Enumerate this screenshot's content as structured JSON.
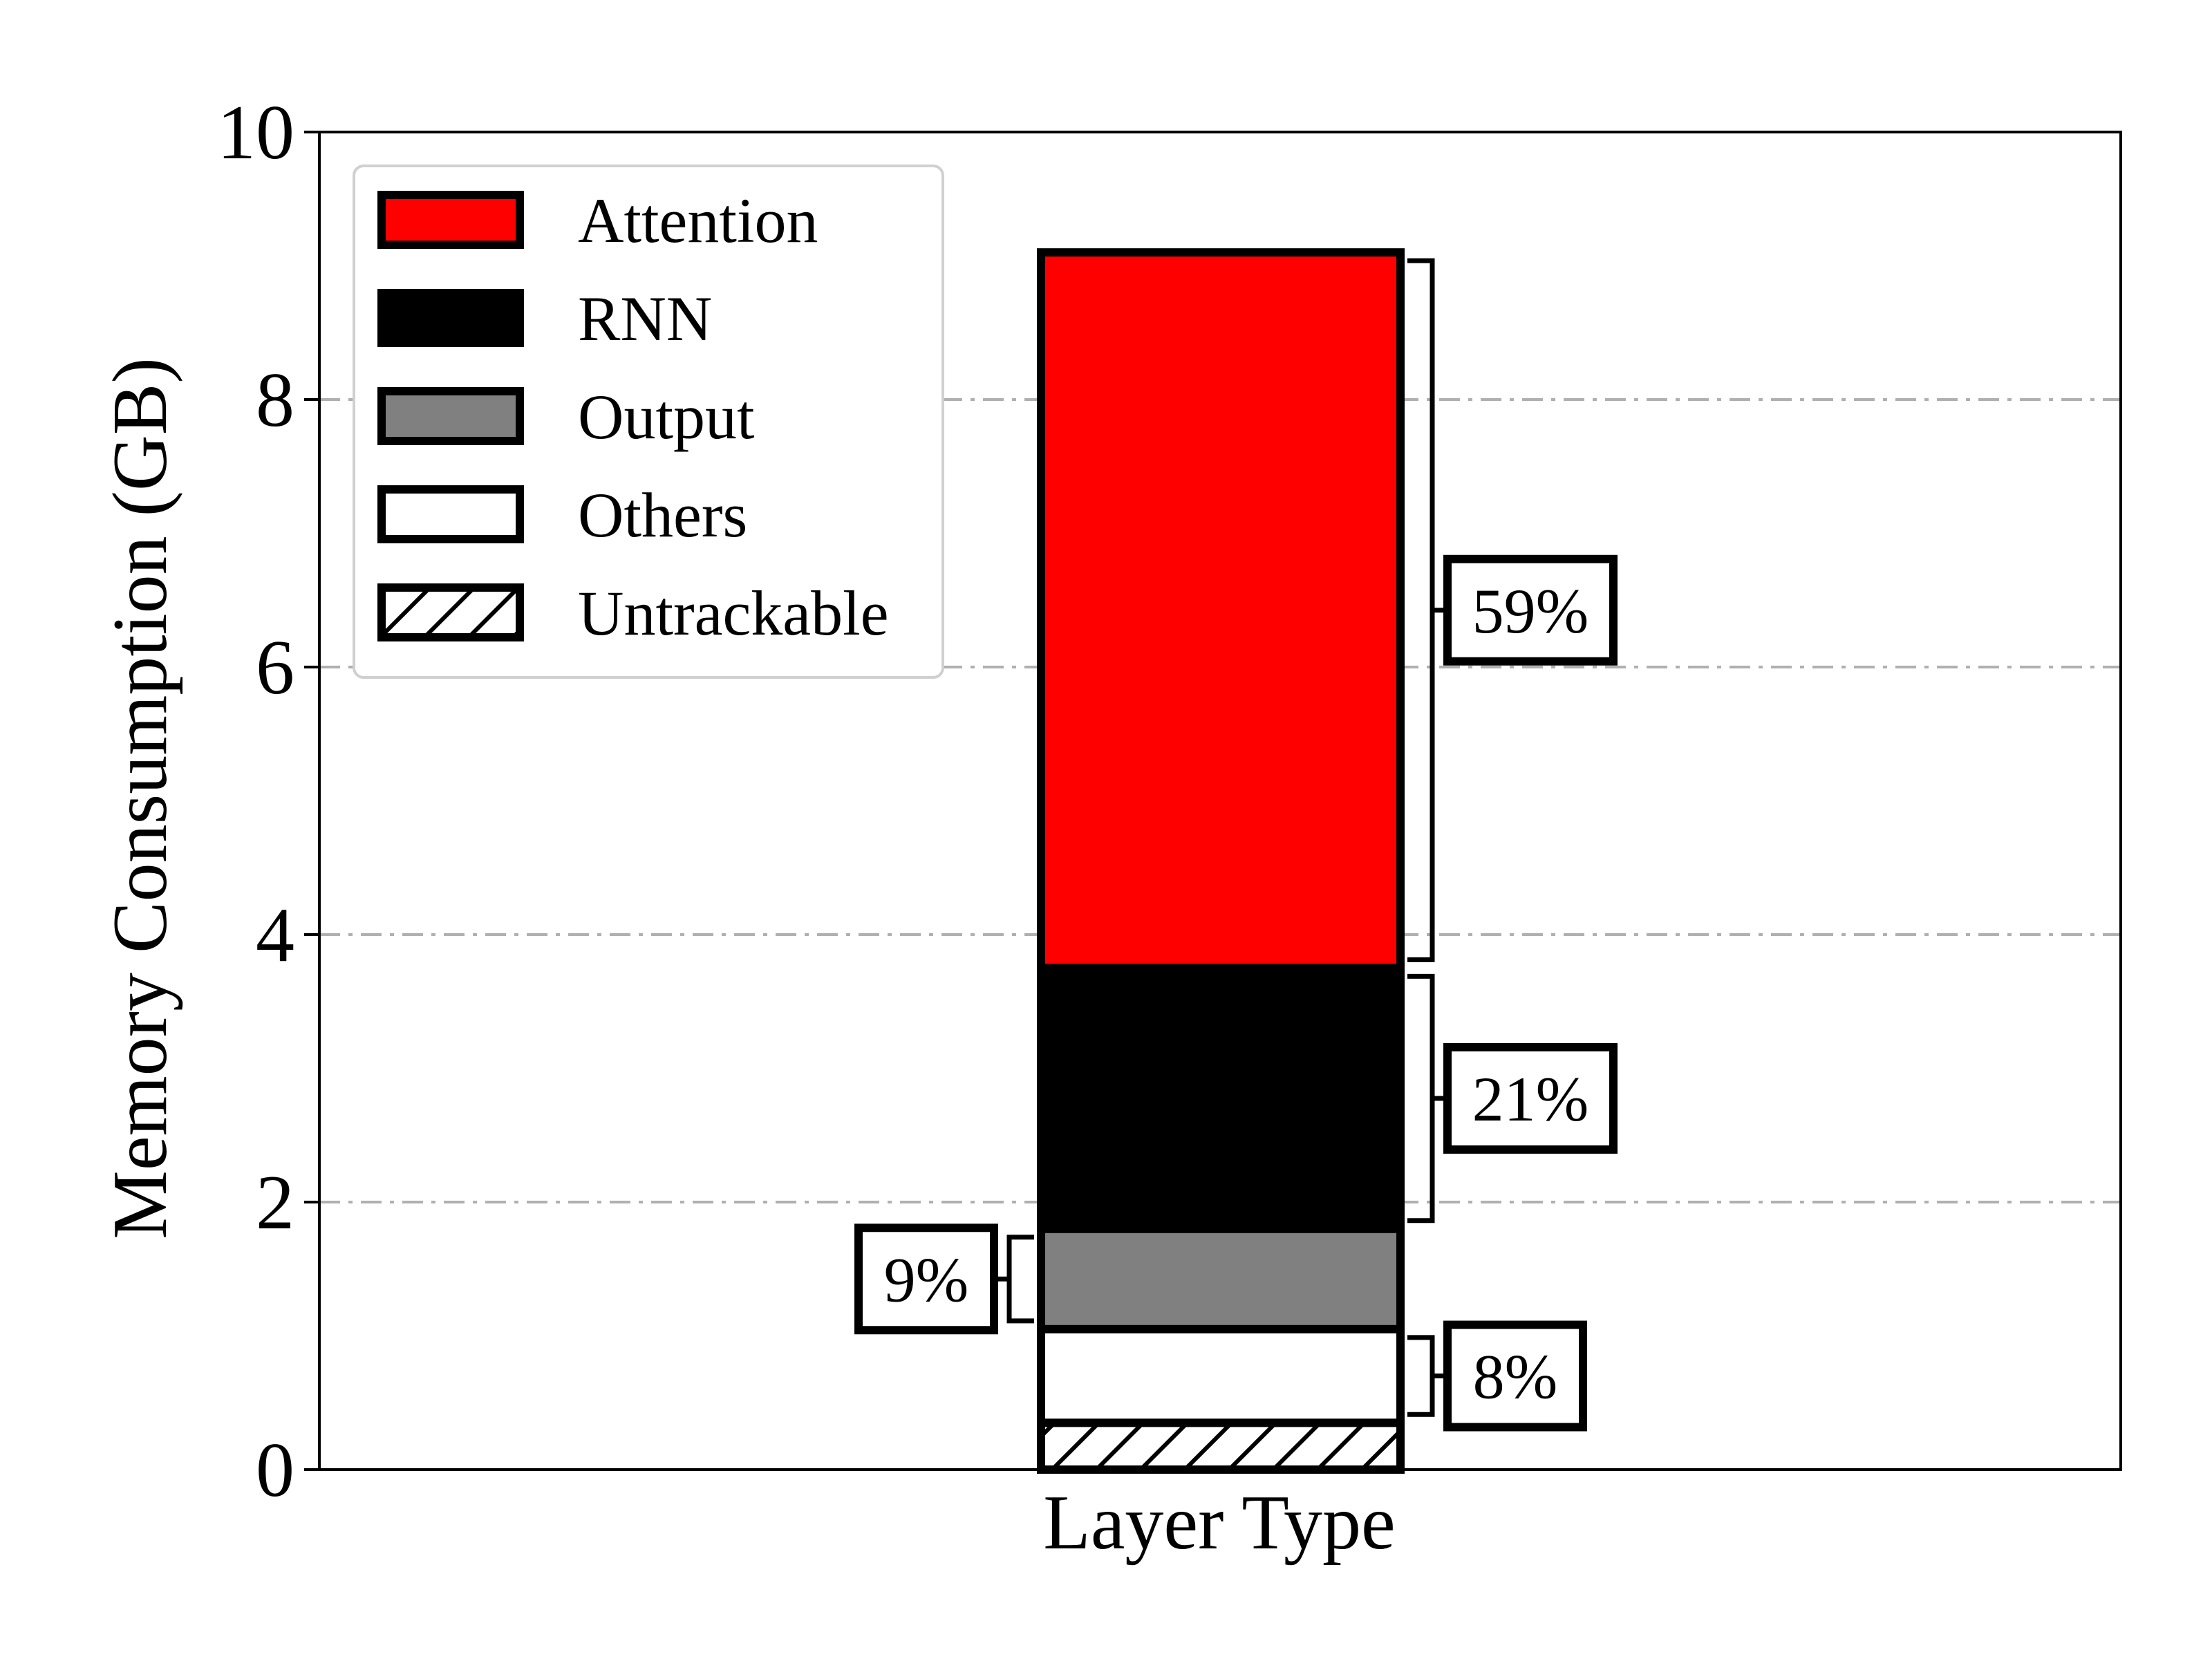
{
  "chart_data": {
    "type": "bar",
    "stacked": true,
    "categories": [
      "Layer Type"
    ],
    "xlabel": "Layer Type",
    "ylabel": "Memory Consumption (GB)",
    "ylim": [
      0,
      10
    ],
    "yticks": [
      "0",
      "2",
      "4",
      "6",
      "8",
      "10"
    ],
    "grid": "horizontal dash-dot",
    "legend_position": "top-left",
    "series": [
      {
        "name": "Untrackable",
        "values": [
          0.35
        ],
        "color": "#ffffff",
        "pattern": "hatch"
      },
      {
        "name": "Others",
        "values": [
          0.7
        ],
        "color": "#ffffff"
      },
      {
        "name": "Output",
        "values": [
          0.75
        ],
        "color": "#808080"
      },
      {
        "name": "RNN",
        "values": [
          1.95
        ],
        "color": "#000000"
      },
      {
        "name": "Attention",
        "values": [
          5.35
        ],
        "color": "#ff0000"
      }
    ],
    "annotations": [
      {
        "series": "Attention",
        "text": "59%",
        "side": "right"
      },
      {
        "series": "RNN",
        "text": "21%",
        "side": "right"
      },
      {
        "series": "Output",
        "text": "9%",
        "side": "left"
      },
      {
        "series": "Others",
        "text": "8%",
        "side": "right"
      }
    ],
    "legend_order": [
      "Attention",
      "RNN",
      "Output",
      "Others",
      "Untrackable"
    ]
  }
}
